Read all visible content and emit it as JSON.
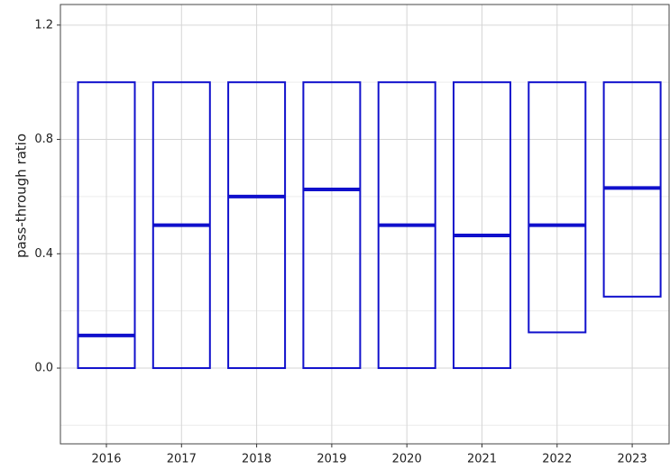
{
  "chart_data": {
    "type": "crossbar",
    "y_label": "pass-through ratio",
    "categories": [
      "2016",
      "2017",
      "2018",
      "2019",
      "2020",
      "2021",
      "2022",
      "2023"
    ],
    "lower": [
      0,
      0,
      0,
      0,
      0,
      0,
      0.125,
      0.25
    ],
    "middle": [
      0.114,
      0.5,
      0.6,
      0.625,
      0.5,
      0.464,
      0.5,
      0.63
    ],
    "upper": [
      1,
      1,
      1,
      1,
      1,
      1,
      1,
      1
    ],
    "color": "#1010cc",
    "ylim": [
      -0.265,
      1.272
    ],
    "yticks": [
      {
        "value": 0,
        "label": "0.0"
      },
      0.4,
      0.8,
      1.2
    ],
    "minor_yticks": [
      -0.2,
      0.2,
      0.6,
      1.0
    ],
    "grid": true
  }
}
